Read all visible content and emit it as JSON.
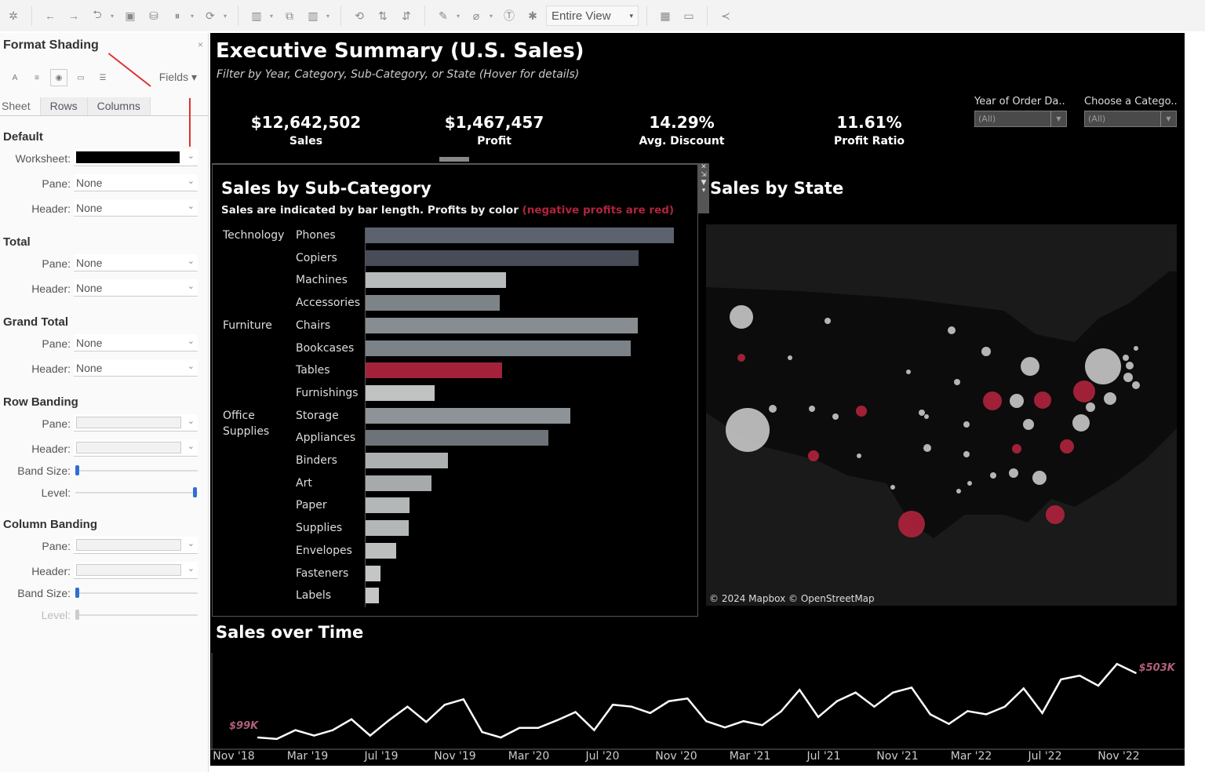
{
  "toolbar": {
    "view_select": "Entire View",
    "icons": [
      "tableau-logo-icon",
      "back-icon",
      "forward-icon",
      "undo-icon",
      "save-icon",
      "new-datasource-icon",
      "pause-updates-icon",
      "refresh-icon",
      "new-worksheet-icon",
      "duplicate-icon",
      "clear-icon",
      "swap-icon",
      "sort-asc-icon",
      "sort-desc-icon",
      "highlight-icon",
      "group-icon",
      "label-icon",
      "pin-icon",
      "show-cards-icon",
      "presentation-icon",
      "share-icon"
    ]
  },
  "format_panel": {
    "title": "Format Shading",
    "fields_label": "Fields",
    "tabs": [
      "Sheet",
      "Rows",
      "Columns"
    ],
    "sections": {
      "default": {
        "title": "Default",
        "worksheet_label": "Worksheet:",
        "worksheet_color": "#000000",
        "pane_label": "Pane:",
        "pane_value": "None",
        "header_label": "Header:",
        "header_value": "None"
      },
      "total": {
        "title": "Total",
        "pane_label": "Pane:",
        "pane_value": "None",
        "header_label": "Header:",
        "header_value": "None"
      },
      "grand_total": {
        "title": "Grand Total",
        "pane_label": "Pane:",
        "pane_value": "None",
        "header_label": "Header:",
        "header_value": "None"
      },
      "row_banding": {
        "title": "Row Banding",
        "pane_label": "Pane:",
        "header_label": "Header:",
        "band_size_label": "Band Size:",
        "band_size": 0,
        "level_label": "Level:",
        "level": 1
      },
      "column_banding": {
        "title": "Column Banding",
        "pane_label": "Pane:",
        "header_label": "Header:",
        "band_size_label": "Band Size:",
        "band_size": 0,
        "level_label": "Level:",
        "level": 0
      }
    }
  },
  "dashboard": {
    "title": "Executive Summary (U.S. Sales)",
    "subtitle": "Filter by Year, Category, Sub-Category, or State (Hover for details)",
    "kpis": [
      {
        "value": "$12,642,502",
        "label": "Sales"
      },
      {
        "value": "$1,467,457",
        "label": "Profit"
      },
      {
        "value": "14.29%",
        "label": "Avg. Discount"
      },
      {
        "value": "11.61%",
        "label": "Profit Ratio"
      }
    ],
    "filters": [
      {
        "label": "Year of Order Da..",
        "value": "(All)"
      },
      {
        "label": "Choose a Catego..",
        "value": "(All)"
      }
    ],
    "map": {
      "title": "Sales by State",
      "attribution": "© 2024 Mapbox © OpenStreetMap",
      "negative_color": "#b0243c",
      "positive_color": "#c8c8c8"
    },
    "line": {
      "title": "Sales over Time",
      "start_label": "$99K",
      "end_label": "$503K"
    }
  },
  "chart_data": [
    {
      "type": "bar",
      "title": "Sales by Sub-Category",
      "subtitle": "Sales are indicated by bar length. Profits by color",
      "subtitle_note": "(negative profits are red)",
      "categories": [
        {
          "category": "Technology",
          "sub": [
            "Phones",
            "Copiers",
            "Machines",
            "Accessories"
          ]
        },
        {
          "category": "Furniture",
          "sub": [
            "Chairs",
            "Bookcases",
            "Tables",
            "Furnishings"
          ]
        },
        {
          "category": "Office Supplies",
          "sub": [
            "Storage",
            "Appliances",
            "Binders",
            "Art",
            "Paper",
            "Supplies",
            "Envelopes",
            "Fasteners",
            "Labels"
          ]
        }
      ],
      "labels": [
        "Phones",
        "Copiers",
        "Machines",
        "Accessories",
        "Chairs",
        "Bookcases",
        "Tables",
        "Furnishings",
        "Storage",
        "Appliances",
        "Binders",
        "Art",
        "Paper",
        "Supplies",
        "Envelopes",
        "Fasteners",
        "Labels"
      ],
      "values": [
        1708000,
        1512000,
        780000,
        745000,
        1508000,
        1469000,
        758000,
        384000,
        1133000,
        1011000,
        458000,
        366000,
        244000,
        240000,
        170000,
        83000,
        74000
      ],
      "colors": [
        "#5c636e",
        "#474c57",
        "#b8bbbc",
        "#7d8487",
        "#878d90",
        "#7b8288",
        "#a3223a",
        "#c0c2c2",
        "#8d9396",
        "#6d7378",
        "#adb0b1",
        "#a7aaab",
        "#b4b7b8",
        "#b4b7b8",
        "#bdbfbf",
        "#c4c6c6",
        "#c4c6c6"
      ]
    },
    {
      "type": "line",
      "title": "Sales over Time",
      "x": [
        "Jan '19",
        "Feb '19",
        "Mar '19",
        "Apr '19",
        "May '19",
        "Jun '19",
        "Jul '19",
        "Aug '19",
        "Sep '19",
        "Oct '19",
        "Nov '19",
        "Dec '19",
        "Jan '20",
        "Feb '20",
        "Mar '20",
        "Apr '20",
        "May '20",
        "Jun '20",
        "Jul '20",
        "Aug '20",
        "Sep '20",
        "Oct '20",
        "Nov '20",
        "Dec '20",
        "Jan '21",
        "Feb '21",
        "Mar '21",
        "Apr '21",
        "May '21",
        "Jun '21",
        "Jul '21",
        "Aug '21",
        "Sep '21",
        "Oct '21",
        "Nov '21",
        "Dec '21",
        "Jan '22",
        "Feb '22",
        "Mar '22",
        "Apr '22",
        "May '22",
        "Jun '22",
        "Jul '22",
        "Aug '22",
        "Sep '22",
        "Oct '22",
        "Nov '22",
        "Dec '22"
      ],
      "y": [
        99,
        90,
        145,
        111,
        145,
        213,
        111,
        206,
        292,
        196,
        304,
        338,
        133,
        99,
        159,
        159,
        206,
        258,
        145,
        304,
        292,
        252,
        326,
        343,
        201,
        162,
        201,
        176,
        261,
        397,
        227,
        326,
        380,
        292,
        380,
        411,
        244,
        184,
        264,
        244,
        292,
        406,
        252,
        462,
        486,
        423,
        559,
        503
      ],
      "y_unit": "$K",
      "xticks": [
        "Nov '18",
        "Mar '19",
        "Jul '19",
        "Nov '19",
        "Mar '20",
        "Jul '20",
        "Nov '20",
        "Mar '21",
        "Jul '21",
        "Nov '21",
        "Mar '22",
        "Jul '22",
        "Nov '22"
      ],
      "line_color": "#ffffff",
      "label_color": "#b0607a"
    }
  ]
}
